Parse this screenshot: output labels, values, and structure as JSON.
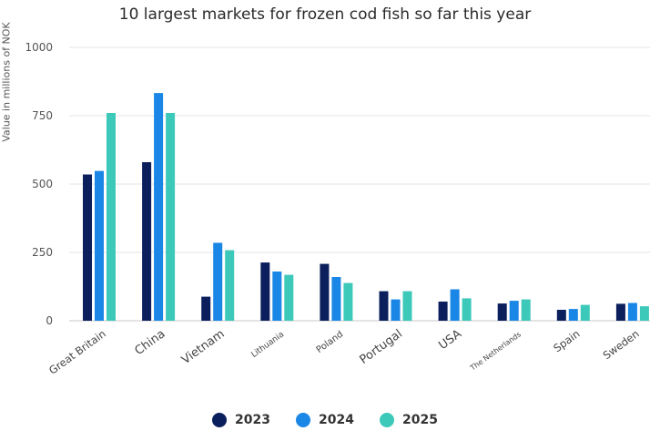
{
  "title": "10 largest markets for frozen cod fish so far this year",
  "chart_data": {
    "type": "bar",
    "title": "10 largest markets for frozen cod fish so far this year",
    "xlabel": "",
    "ylabel": "Value in millions of NOK",
    "ylim": [
      0,
      1000
    ],
    "yticks": [
      "0",
      "250",
      "500",
      "750",
      "1000"
    ],
    "grid": true,
    "legend_position": "bottom",
    "categories": [
      "Great Britain",
      "China",
      "Vietnam",
      "Lithuania",
      "Poland",
      "Portugal",
      "USA",
      "The Netherlands",
      "Spain",
      "Sweden"
    ],
    "series": [
      {
        "name": "2023",
        "color": "#0b1f5c",
        "values": [
          535,
          580,
          88,
          213,
          208,
          108,
          70,
          63,
          40,
          62
        ]
      },
      {
        "name": "2024",
        "color": "#1a86e6",
        "values": [
          548,
          833,
          285,
          180,
          160,
          78,
          115,
          73,
          43,
          65
        ]
      },
      {
        "name": "2025",
        "color": "#3cc9b9",
        "values": [
          760,
          760,
          258,
          168,
          138,
          108,
          82,
          78,
          58,
          53
        ]
      }
    ]
  }
}
